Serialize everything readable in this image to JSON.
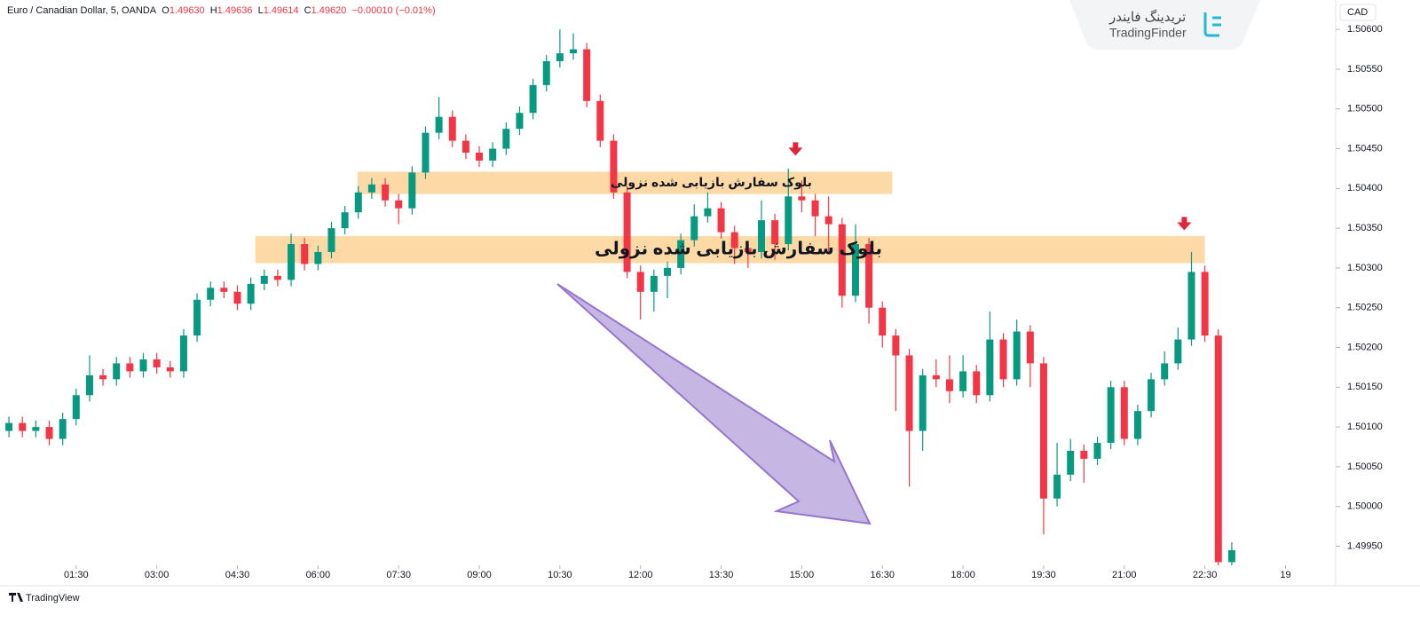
{
  "header": {
    "symbol": "Euro / Canadian Dollar, 5, OANDA",
    "o_label": "O",
    "open": "1.49630",
    "h_label": "H",
    "high": "1.49636",
    "l_label": "L",
    "low": "1.49614",
    "c_label": "C",
    "close": "1.49620",
    "change": "−0.00010 (−0.01%)"
  },
  "currency": "CAD",
  "watermark": {
    "persian": "تریدینگ فایندر",
    "latin": "TradingFinder"
  },
  "footer": "TradingView",
  "chart_data": {
    "type": "candlestick",
    "up_color": "#089981",
    "down_color": "#f23645",
    "xlim": [
      5,
      1496
    ],
    "ylim": [
      1.49926,
      1.50637
    ],
    "xticks": [
      {
        "value": 90,
        "label": "01:30"
      },
      {
        "value": 180,
        "label": "03:00"
      },
      {
        "value": 270,
        "label": "04:30"
      },
      {
        "value": 360,
        "label": "06:00"
      },
      {
        "value": 450,
        "label": "07:30"
      },
      {
        "value": 540,
        "label": "09:00"
      },
      {
        "value": 630,
        "label": "10:30"
      },
      {
        "value": 720,
        "label": "12:00"
      },
      {
        "value": 810,
        "label": "13:30"
      },
      {
        "value": 900,
        "label": "15:00"
      },
      {
        "value": 990,
        "label": "16:30"
      },
      {
        "value": 1080,
        "label": "18:00"
      },
      {
        "value": 1170,
        "label": "19:30"
      },
      {
        "value": 1260,
        "label": "21:00"
      },
      {
        "value": 1350,
        "label": "22:30"
      },
      {
        "value": 1440,
        "label": "19"
      }
    ],
    "yticks": [
      {
        "value": 1.506,
        "label": "1.50600"
      },
      {
        "value": 1.5055,
        "label": "1.50550"
      },
      {
        "value": 1.505,
        "label": "1.50500"
      },
      {
        "value": 1.5045,
        "label": "1.50450"
      },
      {
        "value": 1.504,
        "label": "1.50400"
      },
      {
        "value": 1.5035,
        "label": "1.50350"
      },
      {
        "value": 1.503,
        "label": "1.50300"
      },
      {
        "value": 1.5025,
        "label": "1.50250"
      },
      {
        "value": 1.502,
        "label": "1.50200"
      },
      {
        "value": 1.5015,
        "label": "1.50150"
      },
      {
        "value": 1.501,
        "label": "1.50100"
      },
      {
        "value": 1.5005,
        "label": "1.50050"
      },
      {
        "value": 1.5,
        "label": "1.50000"
      },
      {
        "value": 1.4995,
        "label": "1.49950"
      }
    ],
    "x": [
      15,
      30,
      45,
      60,
      75,
      90,
      105,
      120,
      135,
      150,
      165,
      180,
      195,
      210,
      225,
      240,
      255,
      270,
      285,
      300,
      315,
      330,
      345,
      360,
      375,
      390,
      405,
      420,
      435,
      450,
      465,
      480,
      495,
      510,
      525,
      540,
      555,
      570,
      585,
      600,
      615,
      630,
      645,
      660,
      675,
      690,
      705,
      720,
      735,
      750,
      765,
      780,
      795,
      810,
      825,
      840,
      855,
      870,
      885,
      900,
      915,
      930,
      945,
      960,
      975,
      990,
      1005,
      1020,
      1035,
      1050,
      1065,
      1080,
      1095,
      1110,
      1125,
      1140,
      1155,
      1170,
      1185,
      1200,
      1215,
      1230,
      1245,
      1260,
      1275,
      1290,
      1305,
      1320,
      1335,
      1350,
      1365,
      1380
    ],
    "open": [
      1.50095,
      1.50105,
      1.50095,
      1.501,
      1.50085,
      1.5011,
      1.5014,
      1.50165,
      1.5016,
      1.5018,
      1.5017,
      1.50185,
      1.50175,
      1.5017,
      1.50215,
      1.5026,
      1.50275,
      1.5027,
      1.50255,
      1.5028,
      1.5029,
      1.50285,
      1.5033,
      1.50305,
      1.5032,
      1.5035,
      1.5037,
      1.50395,
      1.50405,
      1.50385,
      1.50375,
      1.5042,
      1.5047,
      1.5049,
      1.5046,
      1.50445,
      1.50435,
      1.5045,
      1.50475,
      1.50495,
      1.5053,
      1.5056,
      1.5057,
      1.50575,
      1.5051,
      1.5046,
      1.50395,
      1.50295,
      1.5027,
      1.5029,
      1.503,
      1.50335,
      1.50365,
      1.50375,
      1.50345,
      1.50325,
      1.5032,
      1.5036,
      1.5033,
      1.5039,
      1.50385,
      1.50365,
      1.50355,
      1.50265,
      1.5033,
      1.5025,
      1.50215,
      1.5019,
      1.50095,
      1.50165,
      1.5016,
      1.50145,
      1.5017,
      1.5014,
      1.5021,
      1.5016,
      1.5022,
      1.5018,
      1.5001,
      1.5004,
      1.5007,
      1.5006,
      1.5008,
      1.5015,
      1.50085,
      1.5012,
      1.5016,
      1.5018,
      1.5021,
      1.50295,
      1.50215,
      1.4993
    ],
    "high": [
      1.50113,
      1.50113,
      1.50108,
      1.50108,
      1.50118,
      1.50148,
      1.5019,
      1.50173,
      1.50188,
      1.50188,
      1.50193,
      1.50193,
      1.50183,
      1.50223,
      1.50268,
      1.50283,
      1.50283,
      1.50278,
      1.50288,
      1.50298,
      1.50298,
      1.50343,
      1.50338,
      1.50328,
      1.50358,
      1.50378,
      1.50403,
      1.50413,
      1.50413,
      1.50393,
      1.50428,
      1.50478,
      1.50515,
      1.50498,
      1.50468,
      1.50453,
      1.50458,
      1.50483,
      1.50503,
      1.50538,
      1.50568,
      1.506,
      1.50595,
      1.50583,
      1.50518,
      1.50468,
      1.50403,
      1.50303,
      1.50298,
      1.50308,
      1.50343,
      1.5038,
      1.50395,
      1.50383,
      1.50353,
      1.50333,
      1.50385,
      1.50368,
      1.50425,
      1.5041,
      1.50393,
      1.5039,
      1.50363,
      1.50355,
      1.50338,
      1.50258,
      1.50223,
      1.50198,
      1.50173,
      1.50185,
      1.5019,
      1.5019,
      1.50178,
      1.50245,
      1.50218,
      1.50235,
      1.50228,
      1.50188,
      1.5008,
      1.50085,
      1.50078,
      1.50088,
      1.50158,
      1.50158,
      1.50128,
      1.50168,
      1.50195,
      1.50225,
      1.5032,
      1.50303,
      1.50223,
      1.49955
    ],
    "low": [
      1.50087,
      1.50087,
      1.50087,
      1.50077,
      1.50077,
      1.50102,
      1.50132,
      1.50152,
      1.50152,
      1.50162,
      1.50162,
      1.50167,
      1.50162,
      1.50162,
      1.50207,
      1.50252,
      1.50262,
      1.50247,
      1.50247,
      1.50272,
      1.50277,
      1.50277,
      1.50297,
      1.50297,
      1.50312,
      1.50342,
      1.50362,
      1.50387,
      1.50377,
      1.50355,
      1.50367,
      1.50412,
      1.50462,
      1.50452,
      1.50437,
      1.50427,
      1.50427,
      1.50442,
      1.50467,
      1.50487,
      1.50522,
      1.50552,
      1.50562,
      1.50502,
      1.50452,
      1.50387,
      1.50287,
      1.50235,
      1.50245,
      1.50262,
      1.50292,
      1.50327,
      1.50357,
      1.50337,
      1.50305,
      1.503,
      1.50312,
      1.5031,
      1.50322,
      1.5037,
      1.5034,
      1.5032,
      1.5025,
      1.50257,
      1.5023,
      1.502,
      1.5012,
      1.50025,
      1.5007,
      1.5015,
      1.5013,
      1.50137,
      1.5013,
      1.50132,
      1.5015,
      1.50152,
      1.5015,
      1.49965,
      1.5,
      1.50032,
      1.5003,
      1.50052,
      1.50072,
      1.50077,
      1.50077,
      1.50112,
      1.50152,
      1.50172,
      1.50202,
      1.50207,
      1.4992,
      1.49925
    ],
    "close": [
      1.50105,
      1.50095,
      1.501,
      1.50085,
      1.5011,
      1.5014,
      1.50165,
      1.5016,
      1.5018,
      1.5017,
      1.50185,
      1.50175,
      1.5017,
      1.50215,
      1.5026,
      1.50275,
      1.5027,
      1.50255,
      1.5028,
      1.5029,
      1.50285,
      1.5033,
      1.50305,
      1.5032,
      1.5035,
      1.5037,
      1.50395,
      1.50405,
      1.50385,
      1.50375,
      1.5042,
      1.5047,
      1.5049,
      1.5046,
      1.50445,
      1.50435,
      1.5045,
      1.50475,
      1.50495,
      1.5053,
      1.5056,
      1.5057,
      1.50575,
      1.5051,
      1.5046,
      1.50395,
      1.50295,
      1.5027,
      1.5029,
      1.503,
      1.50335,
      1.50365,
      1.50375,
      1.50345,
      1.50325,
      1.5032,
      1.5036,
      1.5033,
      1.5039,
      1.50385,
      1.50365,
      1.50355,
      1.50265,
      1.5033,
      1.5025,
      1.50215,
      1.5019,
      1.50095,
      1.50165,
      1.5016,
      1.50145,
      1.5017,
      1.5014,
      1.5021,
      1.5016,
      1.5022,
      1.5018,
      1.5001,
      1.5004,
      1.5007,
      1.5006,
      1.5008,
      1.5015,
      1.50085,
      1.5012,
      1.5016,
      1.5018,
      1.5021,
      1.50295,
      1.50215,
      1.4993,
      1.49945
    ],
    "annotations": {
      "zones": [
        {
          "label": "بلوک سفارش بازیابی شده نزولی",
          "x": [
            404,
            1001
          ],
          "y": [
            1.50393,
            1.50421
          ],
          "color": "#fdd9a6"
        },
        {
          "label": "بلوک سفارش بازیابی شده نزولی",
          "x": [
            290,
            1350
          ],
          "y": [
            1.50306,
            1.5034
          ],
          "color": "#fdd9a6"
        }
      ],
      "markers": [
        {
          "x": 893,
          "y": 1.50448,
          "color": "#e0253c"
        },
        {
          "x": 1327,
          "y": 1.50354,
          "color": "#e0253c"
        }
      ]
    }
  }
}
